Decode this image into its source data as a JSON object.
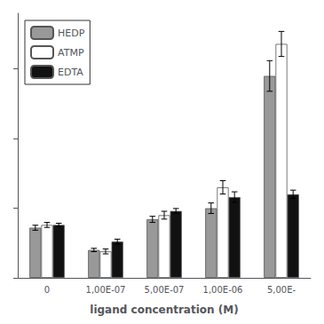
{
  "chart_data": {
    "type": "bar",
    "xlabel": "ligand concentration (M)",
    "categories": [
      "0",
      "1,00E-07",
      "5,00E-07",
      "1,00E-06",
      "5,00E-"
    ],
    "series": [
      {
        "name": "HEDP",
        "color": "#999999",
        "values": [
          0.36,
          0.2,
          0.42,
          0.5,
          1.45
        ],
        "errors": [
          0.018,
          0.012,
          0.022,
          0.038,
          0.11
        ]
      },
      {
        "name": "ATMP",
        "color": "#ffffff",
        "values": [
          0.38,
          0.19,
          0.45,
          0.65,
          1.68
        ],
        "errors": [
          0.018,
          0.018,
          0.028,
          0.048,
          0.09
        ]
      },
      {
        "name": "EDTA",
        "color": "#111111",
        "values": [
          0.38,
          0.26,
          0.48,
          0.58,
          0.6
        ],
        "errors": [
          0.012,
          0.018,
          0.018,
          0.038,
          0.03
        ]
      }
    ],
    "ylim": [
      0,
      1.9
    ],
    "yticks": [
      0,
      0.5,
      1.0,
      1.5
    ],
    "tick_labels": "x",
    "grid": false,
    "legend": "upper left"
  }
}
